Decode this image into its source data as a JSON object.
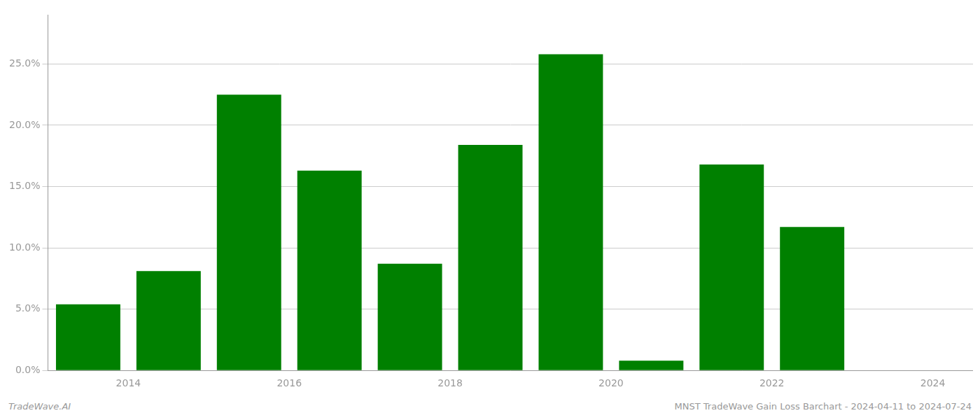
{
  "chart_data": {
    "type": "bar",
    "x": [
      2014,
      2015,
      2016,
      2017,
      2018,
      2019,
      2020,
      2021,
      2022,
      2023
    ],
    "values": [
      0.054,
      0.081,
      0.225,
      0.163,
      0.087,
      0.184,
      0.258,
      0.008,
      0.168,
      0.117
    ],
    "color": "#008000",
    "xlim": [
      2013.5,
      2025.0
    ],
    "xticks": [
      {
        "value": 2014.5,
        "label": "2014"
      },
      {
        "value": 2016.5,
        "label": "2016"
      },
      {
        "value": 2018.5,
        "label": "2018"
      },
      {
        "value": 2020.5,
        "label": "2020"
      },
      {
        "value": 2022.5,
        "label": "2022"
      },
      {
        "value": 2024.5,
        "label": "2024"
      }
    ],
    "ylim": [
      0,
      0.29
    ],
    "yticks": [
      {
        "value": 0.0,
        "label": "0.0%"
      },
      {
        "value": 0.05,
        "label": "5.0%"
      },
      {
        "value": 0.1,
        "label": "10.0%"
      },
      {
        "value": 0.15,
        "label": "15.0%"
      },
      {
        "value": 0.2,
        "label": "20.0%"
      },
      {
        "value": 0.25,
        "label": "25.0%"
      }
    ],
    "grid": true,
    "annotations": [
      "TradeWave.AI",
      "MNST TradeWave Gain Loss Barchart - 2024-04-11 to 2024-07-24"
    ]
  }
}
